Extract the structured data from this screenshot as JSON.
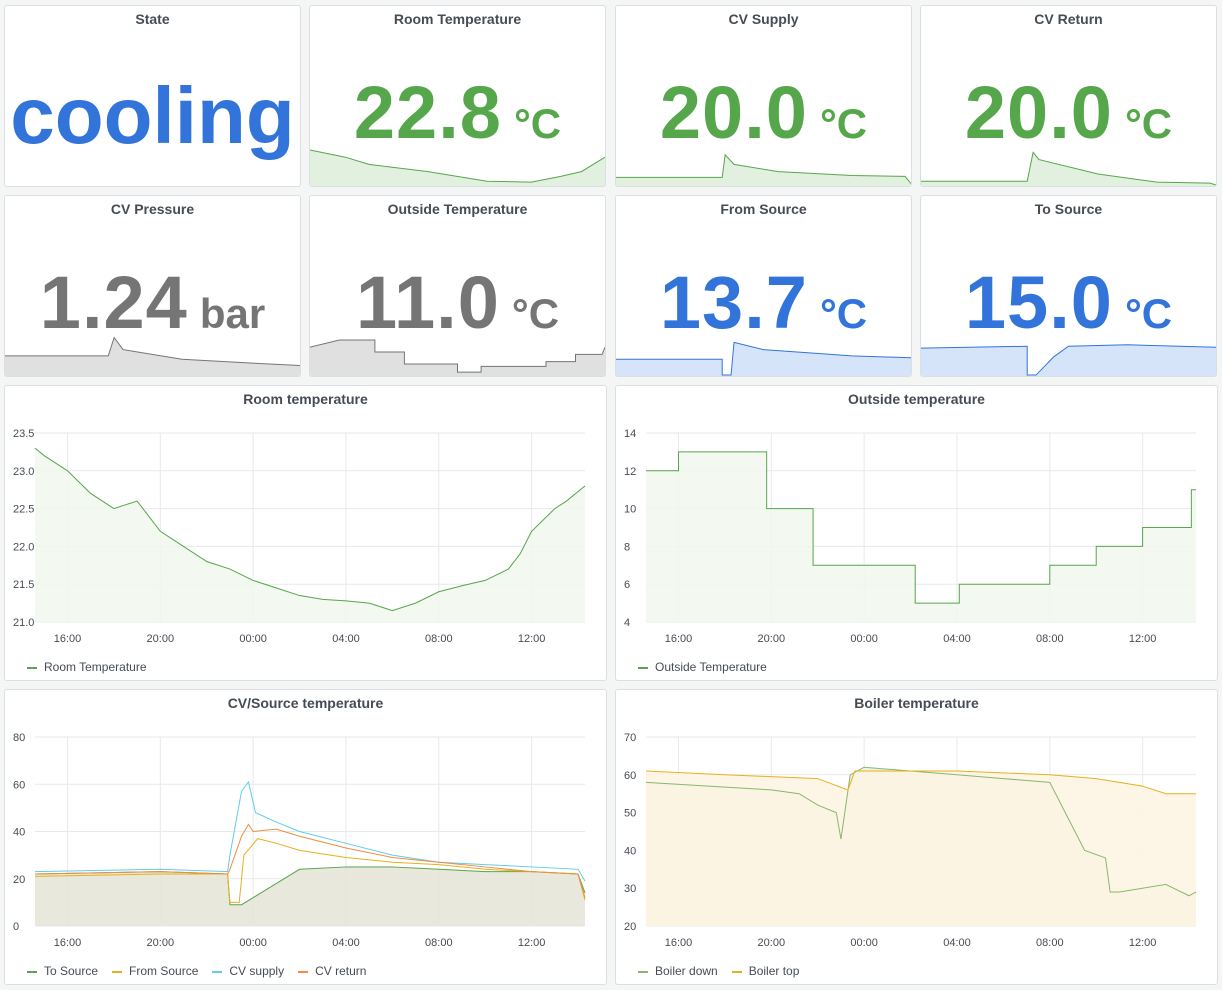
{
  "stats": [
    {
      "title": "State",
      "value": "cooling",
      "unit": "",
      "color": "#3274d9",
      "type": "text"
    },
    {
      "title": "Room Temperature",
      "value": "22.8",
      "unit": "°C",
      "color": "#56a64b",
      "spark": [
        [
          0,
          0.75
        ],
        [
          0.12,
          0.6
        ],
        [
          0.2,
          0.45
        ],
        [
          0.4,
          0.3
        ],
        [
          0.6,
          0.1
        ],
        [
          0.75,
          0.08
        ],
        [
          0.85,
          0.2
        ],
        [
          0.92,
          0.3
        ],
        [
          1,
          0.6
        ]
      ],
      "fill": "#e2f0df"
    },
    {
      "title": "CV Supply",
      "value": "20.0",
      "unit": "°C",
      "color": "#56a64b",
      "spark": [
        [
          0,
          0.18
        ],
        [
          0.36,
          0.18
        ],
        [
          0.37,
          0.65
        ],
        [
          0.4,
          0.45
        ],
        [
          0.55,
          0.3
        ],
        [
          0.8,
          0.22
        ],
        [
          0.98,
          0.2
        ],
        [
          1,
          0.05
        ]
      ],
      "fill": "#e2f0df"
    },
    {
      "title": "CV Return",
      "value": "20.0",
      "unit": "°C",
      "color": "#56a64b",
      "spark": [
        [
          0,
          0.1
        ],
        [
          0.36,
          0.1
        ],
        [
          0.38,
          0.7
        ],
        [
          0.4,
          0.55
        ],
        [
          0.6,
          0.25
        ],
        [
          0.8,
          0.08
        ],
        [
          0.98,
          0.06
        ],
        [
          1,
          0.02
        ]
      ],
      "fill": "#e2f0df"
    },
    {
      "title": "CV Pressure",
      "value": "1.24",
      "unit": "bar",
      "color": "#757575",
      "spark": [
        [
          0,
          0.42
        ],
        [
          0.35,
          0.42
        ],
        [
          0.37,
          0.8
        ],
        [
          0.4,
          0.55
        ],
        [
          0.6,
          0.35
        ],
        [
          0.8,
          0.28
        ],
        [
          1,
          0.22
        ]
      ],
      "fill": "#e0e0e0"
    },
    {
      "title": "Outside Temperature",
      "value": "11.0",
      "unit": "°C",
      "color": "#757575",
      "spark": [
        [
          0,
          0.6
        ],
        [
          0.1,
          0.75
        ],
        [
          0.22,
          0.75
        ],
        [
          0.22,
          0.5
        ],
        [
          0.32,
          0.5
        ],
        [
          0.32,
          0.25
        ],
        [
          0.5,
          0.25
        ],
        [
          0.5,
          0.08
        ],
        [
          0.58,
          0.08
        ],
        [
          0.58,
          0.2
        ],
        [
          0.8,
          0.2
        ],
        [
          0.8,
          0.3
        ],
        [
          0.9,
          0.3
        ],
        [
          0.9,
          0.45
        ],
        [
          0.99,
          0.45
        ],
        [
          1,
          0.6
        ]
      ],
      "fill": "#e0e0e0"
    },
    {
      "title": "From Source",
      "value": "13.7",
      "unit": "°C",
      "color": "#3274d9",
      "spark": [
        [
          0,
          0.35
        ],
        [
          0.36,
          0.35
        ],
        [
          0.36,
          0.02
        ],
        [
          0.39,
          0.02
        ],
        [
          0.4,
          0.7
        ],
        [
          0.5,
          0.55
        ],
        [
          0.8,
          0.42
        ],
        [
          1,
          0.38
        ]
      ],
      "fill": "#d6e4fa"
    },
    {
      "title": "To Source",
      "value": "15.0",
      "unit": "°C",
      "color": "#3274d9",
      "spark": [
        [
          0,
          0.58
        ],
        [
          0.36,
          0.62
        ],
        [
          0.36,
          0.02
        ],
        [
          0.39,
          0.02
        ],
        [
          0.45,
          0.4
        ],
        [
          0.5,
          0.62
        ],
        [
          0.7,
          0.65
        ],
        [
          1,
          0.6
        ]
      ],
      "fill": "#d6e4fa"
    }
  ],
  "chart_data": [
    {
      "type": "line",
      "title": "Room temperature",
      "xticks": [
        "16:00",
        "20:00",
        "00:00",
        "04:00",
        "08:00",
        "12:00"
      ],
      "yticks": [
        "21.0",
        "21.5",
        "22.0",
        "22.5",
        "23.0",
        "23.5"
      ],
      "ylim": [
        21.0,
        23.5
      ],
      "xlim": [
        14.6,
        38.3
      ],
      "series": [
        {
          "name": "Room Temperature",
          "color": "#56a64b",
          "fill": "#f1f7ef",
          "x": [
            14.6,
            15,
            16,
            17,
            18,
            19,
            20,
            21,
            22,
            23,
            24,
            25,
            26,
            27,
            28,
            29,
            29.5,
            30,
            31,
            32,
            33,
            34,
            35,
            35.5,
            36,
            37,
            37.5,
            38.3
          ],
          "y": [
            23.3,
            23.2,
            23.0,
            22.7,
            22.5,
            22.6,
            22.2,
            22.0,
            21.8,
            21.7,
            21.55,
            21.45,
            21.35,
            21.3,
            21.28,
            21.25,
            21.2,
            21.15,
            21.25,
            21.4,
            21.48,
            21.55,
            21.7,
            21.9,
            22.2,
            22.5,
            22.6,
            22.8
          ]
        }
      ]
    },
    {
      "type": "line",
      "title": "Outside temperature",
      "xticks": [
        "16:00",
        "20:00",
        "00:00",
        "04:00",
        "08:00",
        "12:00"
      ],
      "yticks": [
        "4",
        "6",
        "8",
        "10",
        "12",
        "14"
      ],
      "ylim": [
        4,
        14
      ],
      "xlim": [
        14.6,
        38.3
      ],
      "series": [
        {
          "name": "Outside Temperature",
          "color": "#56a64b",
          "fill": "#f1f7ef",
          "step": true,
          "x": [
            14.6,
            16,
            19.8,
            21.8,
            26.2,
            28.1,
            32,
            34,
            36,
            38.1,
            38.3
          ],
          "y": [
            12,
            13,
            10,
            7,
            5,
            6,
            7,
            8,
            9,
            11,
            11
          ]
        }
      ]
    },
    {
      "type": "line",
      "title": "CV/Source temperature",
      "xticks": [
        "16:00",
        "20:00",
        "00:00",
        "04:00",
        "08:00",
        "12:00"
      ],
      "yticks": [
        "0",
        "20",
        "40",
        "60",
        "80"
      ],
      "ylim": [
        0,
        80
      ],
      "xlim": [
        14.6,
        38.3
      ],
      "series": [
        {
          "name": "To Source",
          "color": "#56a64b",
          "fill": "#e5e4d6",
          "x": [
            14.6,
            20,
            22.9,
            23,
            23.5,
            24,
            25,
            26,
            28,
            30,
            32,
            34,
            36,
            38,
            38.3
          ],
          "y": [
            22,
            23,
            22,
            9,
            9,
            12,
            18,
            24,
            25,
            25,
            24,
            23,
            23,
            22,
            14
          ]
        },
        {
          "name": "From Source",
          "color": "#e8b01b",
          "fill": "",
          "x": [
            14.6,
            20,
            22.9,
            23,
            23.4,
            23.6,
            24.2,
            25,
            26,
            28,
            30,
            32,
            34,
            36,
            38,
            38.3
          ],
          "y": [
            21,
            22,
            22,
            10,
            10,
            30,
            37,
            35,
            32,
            29,
            27,
            26,
            24,
            23,
            22,
            11
          ]
        },
        {
          "name": "CV supply",
          "color": "#5fcdeb",
          "fill": "",
          "x": [
            14.6,
            20,
            22.9,
            23,
            23.5,
            23.8,
            24.1,
            25,
            26,
            28,
            30,
            32,
            34,
            36,
            38,
            38.3
          ],
          "y": [
            23,
            24,
            23,
            30,
            57,
            61,
            48,
            44,
            40,
            35,
            30,
            27,
            26,
            25,
            24,
            19
          ]
        },
        {
          "name": "CV return",
          "color": "#f08c44",
          "fill": "",
          "x": [
            14.6,
            20,
            22.9,
            23,
            23.5,
            23.8,
            24,
            25,
            26,
            28,
            30,
            32,
            34,
            36,
            38,
            38.3
          ],
          "y": [
            22,
            23,
            22,
            24,
            38,
            43,
            40,
            41,
            38,
            33,
            29,
            27,
            25,
            23,
            22,
            12
          ]
        }
      ]
    },
    {
      "type": "line",
      "title": "Boiler temperature",
      "xticks": [
        "16:00",
        "20:00",
        "00:00",
        "04:00",
        "08:00",
        "12:00"
      ],
      "yticks": [
        "20",
        "30",
        "40",
        "50",
        "60",
        "70"
      ],
      "ylim": [
        20,
        70
      ],
      "xlim": [
        14.6,
        38.3
      ],
      "series": [
        {
          "name": "Boiler down",
          "color": "#8ab66e",
          "fill": "#eef0dc",
          "x": [
            14.6,
            20,
            21.2,
            22,
            22.8,
            23,
            23.4,
            24,
            26,
            28,
            30,
            32,
            33.5,
            34.4,
            34.6,
            35,
            36,
            37,
            38,
            38.3
          ],
          "y": [
            58,
            56,
            55,
            52,
            50,
            43,
            60,
            62,
            61,
            60,
            59,
            58,
            40,
            38,
            29,
            29,
            30,
            31,
            28,
            29
          ]
        },
        {
          "name": "Boiler top",
          "color": "#e8b01b",
          "fill": "#fdf4e3",
          "x": [
            14.6,
            18,
            22,
            23.3,
            23.6,
            24,
            28,
            32,
            34,
            36,
            37,
            38.3
          ],
          "y": [
            61,
            60,
            59,
            56,
            61,
            61,
            61,
            60,
            59,
            57,
            55,
            55
          ]
        }
      ]
    }
  ]
}
